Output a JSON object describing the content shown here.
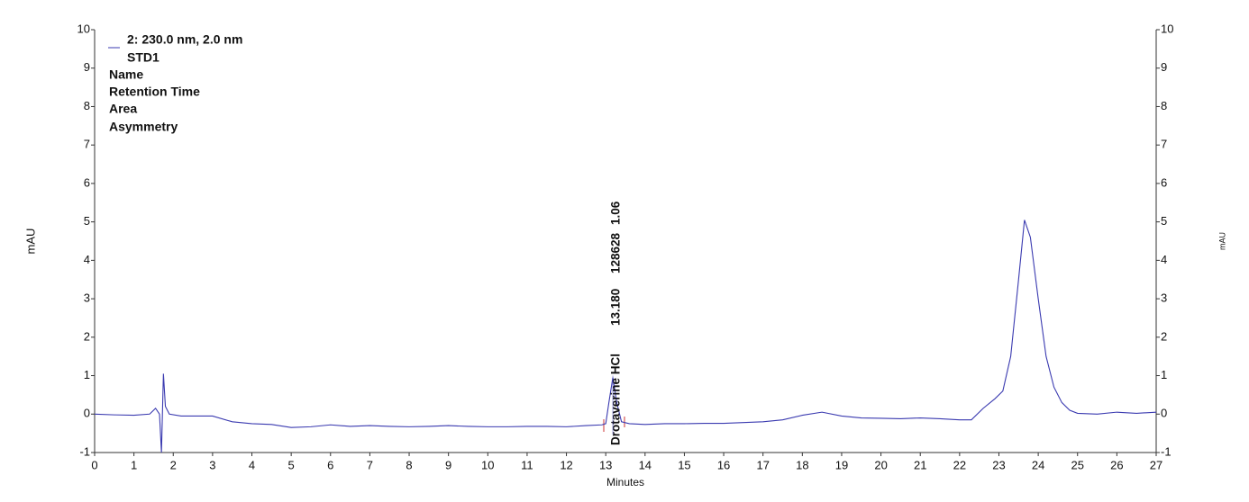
{
  "chart_data": {
    "type": "line",
    "y_label": "mAU",
    "x_label": "Minutes",
    "legend": [
      "2: 230.0 nm, 2.0 nm",
      "STD1",
      "Name",
      "Retention Time",
      "Area",
      "Asymmetry"
    ],
    "peak_label": {
      "x": 13.18,
      "name": "Drotaverine HCl",
      "retention_time": "13.180",
      "area": "128628",
      "asymmetry": "1.06"
    },
    "xlim": [
      0,
      27
    ],
    "xticks": [
      0,
      1,
      2,
      3,
      4,
      5,
      6,
      7,
      8,
      9,
      10,
      11,
      12,
      13,
      14,
      15,
      16,
      17,
      18,
      19,
      20,
      21,
      22,
      23,
      24,
      25,
      26,
      27
    ],
    "ylim": [
      -1,
      10
    ],
    "yticks": [
      -1,
      0,
      1,
      2,
      3,
      4,
      5,
      6,
      7,
      8,
      9,
      10
    ],
    "series": [
      {
        "color": "#3a3ab0",
        "x": [
          0,
          0.5,
          1.0,
          1.4,
          1.55,
          1.65,
          1.7,
          1.75,
          1.8,
          1.9,
          2.2,
          2.5,
          3.0,
          3.5,
          4,
          4.5,
          5,
          5.5,
          6,
          6.5,
          7,
          7.5,
          8,
          8.5,
          9,
          9.5,
          10,
          10.5,
          11,
          11.5,
          12,
          12.5,
          12.9,
          13.0,
          13.08,
          13.18,
          13.28,
          13.4,
          13.6,
          14,
          14.5,
          15,
          15.5,
          16,
          16.5,
          17,
          17.5,
          18,
          18.5,
          19,
          19.5,
          20,
          20.5,
          21,
          21.5,
          22,
          22.3,
          22.6,
          22.9,
          23.1,
          23.3,
          23.5,
          23.65,
          23.8,
          24.0,
          24.2,
          24.4,
          24.6,
          24.8,
          25,
          25.5,
          26,
          26.5,
          27
        ],
        "values": [
          0.0,
          -0.02,
          -0.03,
          0.0,
          0.15,
          0.0,
          -1.0,
          1.05,
          0.2,
          0.0,
          -0.05,
          -0.05,
          -0.05,
          -0.2,
          -0.25,
          -0.27,
          -0.35,
          -0.33,
          -0.28,
          -0.32,
          -0.3,
          -0.32,
          -0.33,
          -0.32,
          -0.3,
          -0.32,
          -0.33,
          -0.33,
          -0.32,
          -0.32,
          -0.33,
          -0.3,
          -0.28,
          -0.25,
          0.3,
          0.95,
          0.3,
          -0.2,
          -0.25,
          -0.27,
          -0.25,
          -0.25,
          -0.24,
          -0.24,
          -0.22,
          -0.2,
          -0.15,
          -0.03,
          0.05,
          -0.05,
          -0.1,
          -0.11,
          -0.12,
          -0.1,
          -0.12,
          -0.15,
          -0.15,
          0.15,
          0.4,
          0.6,
          1.5,
          3.5,
          5.05,
          4.6,
          3.0,
          1.5,
          0.7,
          0.3,
          0.1,
          0.02,
          0.0,
          0.05,
          0.02,
          0.05
        ]
      }
    ]
  }
}
